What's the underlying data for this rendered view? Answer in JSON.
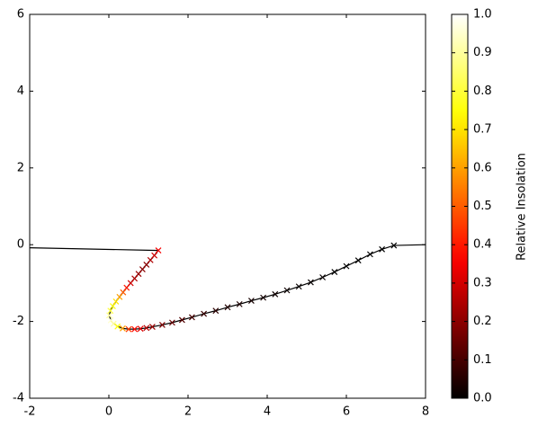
{
  "chart_data": {
    "type": "line",
    "xlim": [
      -2,
      8
    ],
    "xticks": [
      -2,
      0,
      2,
      4,
      6,
      8
    ],
    "ylim": [
      -4,
      6
    ],
    "yticks": [
      -4,
      -2,
      0,
      2,
      4,
      6
    ],
    "series": [
      {
        "type": "line",
        "color": "#000000",
        "x": [
          -2,
          1.25,
          1.15,
          1.05,
          0.95,
          0.85,
          0.75,
          0.65,
          0.55,
          0.45,
          0.36,
          0.27,
          0.18,
          0.1,
          0.04,
          0.01,
          0.05,
          0.12,
          0.22,
          0.35,
          0.5,
          0.65,
          0.8,
          0.95,
          1.1,
          1.35,
          1.6,
          1.85,
          2.1,
          2.4,
          2.7,
          3.0,
          3.3,
          3.6,
          3.9,
          4.2,
          4.5,
          4.8,
          5.1,
          5.4,
          5.7,
          6.0,
          6.3,
          6.6,
          6.9,
          7.2,
          8
        ],
        "y": [
          -0.08,
          -0.15,
          -0.28,
          -0.4,
          -0.52,
          -0.64,
          -0.76,
          -0.88,
          -1.0,
          -1.12,
          -1.24,
          -1.36,
          -1.48,
          -1.6,
          -1.72,
          -1.84,
          -1.97,
          -2.06,
          -2.13,
          -2.18,
          -2.2,
          -2.2,
          -2.19,
          -2.17,
          -2.14,
          -2.09,
          -2.03,
          -1.96,
          -1.89,
          -1.8,
          -1.72,
          -1.63,
          -1.55,
          -1.46,
          -1.38,
          -1.29,
          -1.19,
          -1.09,
          -0.98,
          -0.85,
          -0.71,
          -0.56,
          -0.41,
          -0.25,
          -0.12,
          -0.02,
          0.0
        ]
      },
      {
        "type": "scatter",
        "marker": "x",
        "x": [
          1.25,
          1.15,
          1.05,
          0.95,
          0.85,
          0.75,
          0.65,
          0.55,
          0.45,
          0.36,
          0.27,
          0.18,
          0.1,
          0.04,
          0.01,
          0.05,
          0.12,
          0.22,
          0.35,
          0.5,
          0.65,
          0.8,
          0.95,
          1.1,
          1.35,
          1.6,
          1.85,
          2.1,
          2.4,
          2.7,
          3.0,
          3.3,
          3.6,
          3.9,
          4.2,
          4.5,
          4.8,
          5.1,
          5.4,
          5.7,
          6.0,
          6.3,
          6.6,
          6.9,
          7.2
        ],
        "y": [
          -0.15,
          -0.28,
          -0.4,
          -0.52,
          -0.64,
          -0.76,
          -0.88,
          -1.0,
          -1.12,
          -1.24,
          -1.36,
          -1.48,
          -1.6,
          -1.72,
          -1.84,
          -1.97,
          -2.06,
          -2.13,
          -2.18,
          -2.2,
          -2.2,
          -2.19,
          -2.17,
          -2.14,
          -2.09,
          -2.03,
          -1.96,
          -1.89,
          -1.8,
          -1.72,
          -1.63,
          -1.55,
          -1.46,
          -1.38,
          -1.29,
          -1.19,
          -1.09,
          -0.98,
          -0.85,
          -0.71,
          -0.56,
          -0.41,
          -0.25,
          -0.12,
          -0.02
        ],
        "values": [
          0.35,
          0.3,
          0.25,
          0.2,
          0.2,
          0.22,
          0.25,
          0.3,
          0.4,
          0.5,
          0.6,
          0.7,
          0.75,
          0.8,
          0.9,
          0.95,
          0.9,
          0.75,
          0.6,
          0.45,
          0.38,
          0.32,
          0.26,
          0.22,
          0.18,
          0.15,
          0.12,
          0.1,
          0.08,
          0.06,
          0.05,
          0.04,
          0.03,
          0.03,
          0.02,
          0.02,
          0.01,
          0.01,
          0.01,
          0,
          0,
          0,
          0,
          0,
          0
        ]
      }
    ],
    "colorbar": {
      "label": "Relative Insolation",
      "cmap": "hot",
      "lim": [
        0,
        1
      ],
      "ticks": [
        {
          "value": 0,
          "label": "0.0"
        },
        {
          "value": 0.1,
          "label": "0.1"
        },
        {
          "value": 0.2,
          "label": "0.2"
        },
        {
          "value": 0.3,
          "label": "0.3"
        },
        {
          "value": 0.4,
          "label": "0.4"
        },
        {
          "value": 0.5,
          "label": "0.5"
        },
        {
          "value": 0.6,
          "label": "0.6"
        },
        {
          "value": 0.7,
          "label": "0.7"
        },
        {
          "value": 0.8,
          "label": "0.8"
        },
        {
          "value": 0.9,
          "label": "0.9"
        },
        {
          "value": 1,
          "label": "1.0"
        }
      ]
    }
  }
}
